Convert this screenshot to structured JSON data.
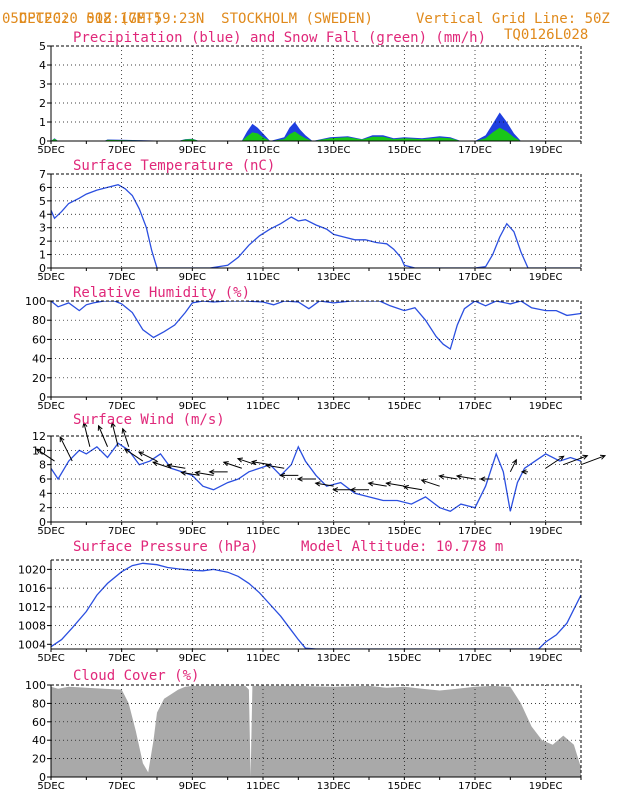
{
  "header": {
    "source": "CPTEC:",
    "coords": "018:17E-59:23N",
    "location": "STOCKHOLM (SWEDEN)",
    "run": "05DEC2020 50Z (GMT)",
    "grid_note": "Vertical Grid Line: 50Z",
    "model_code": "TQ0126L028"
  },
  "colors": {
    "header": "#e08a1c",
    "panel_title": "#e0287a",
    "line": "#2b4fe0",
    "precip": "#1f3fe0",
    "snow": "#19c619",
    "cloud": "#a9a9a9"
  },
  "chart_data": [
    {
      "type": "area",
      "title": "Precipitation (blue) and Snow Fall (green) (mm/h)",
      "x_ticks": [
        "5DEC",
        "7DEC",
        "9DEC",
        "11DEC",
        "13DEC",
        "15DEC",
        "17DEC",
        "19DEC"
      ],
      "x_days": [
        5,
        7,
        9,
        11,
        13,
        15,
        17,
        19
      ],
      "xlim": [
        5,
        20
      ],
      "ylim": [
        0,
        5
      ],
      "y_ticks": [
        0,
        1,
        2,
        3,
        4,
        5
      ],
      "grid": true,
      "series": [
        {
          "name": "Precipitation",
          "x": [
            5,
            5.1,
            5.2,
            6.5,
            6.6,
            8.6,
            8.8,
            9.0,
            9.2,
            10.4,
            10.55,
            10.7,
            10.85,
            11.0,
            11.2,
            11.6,
            11.75,
            11.9,
            12.05,
            12.2,
            12.4,
            12.9,
            13.4,
            13.8,
            14.1,
            14.4,
            14.7,
            15.0,
            15.5,
            16.0,
            16.3,
            16.6,
            17.0,
            17.3,
            17.5,
            17.7,
            17.9,
            18.1,
            18.3,
            20
          ],
          "y": [
            0,
            0.15,
            0,
            0,
            0.08,
            0,
            0.1,
            0.12,
            0,
            0,
            0.5,
            0.9,
            0.7,
            0.4,
            0,
            0.2,
            0.7,
            1.0,
            0.6,
            0.3,
            0,
            0.2,
            0.25,
            0.1,
            0.3,
            0.3,
            0.15,
            0.2,
            0.15,
            0.25,
            0.2,
            0,
            0,
            0.3,
            0.9,
            1.5,
            1.0,
            0.4,
            0,
            0
          ]
        },
        {
          "name": "Snow Fall",
          "x": [
            5,
            5.1,
            5.2,
            6.5,
            6.6,
            8.6,
            8.8,
            9.0,
            9.2,
            10.4,
            10.55,
            10.7,
            10.85,
            11.0,
            11.2,
            11.6,
            11.75,
            11.9,
            12.05,
            12.2,
            12.4,
            12.9,
            13.4,
            13.8,
            14.1,
            14.4,
            14.7,
            15.0,
            15.5,
            16.0,
            16.3,
            16.6,
            17.0,
            17.3,
            17.5,
            17.7,
            17.9,
            18.1,
            18.3,
            20
          ],
          "y": [
            0,
            0.12,
            0,
            0,
            0.06,
            0,
            0.08,
            0.1,
            0,
            0,
            0.25,
            0.45,
            0.4,
            0.2,
            0,
            0.1,
            0.35,
            0.5,
            0.3,
            0.15,
            0,
            0.15,
            0.2,
            0.08,
            0.22,
            0.22,
            0.1,
            0.15,
            0.1,
            0.18,
            0.15,
            0,
            0,
            0.15,
            0.45,
            0.7,
            0.5,
            0.2,
            0,
            0
          ]
        }
      ]
    },
    {
      "type": "line",
      "title": "Surface Temperature (nC)",
      "x_ticks": [
        "5DEC",
        "7DEC",
        "9DEC",
        "11DEC",
        "13DEC",
        "15DEC",
        "17DEC",
        "19DEC"
      ],
      "x_days": [
        5,
        7,
        9,
        11,
        13,
        15,
        17,
        19
      ],
      "xlim": [
        5,
        20
      ],
      "ylim": [
        0,
        7
      ],
      "y_ticks": [
        0,
        1,
        2,
        3,
        4,
        5,
        6,
        7
      ],
      "grid": true,
      "series": [
        {
          "name": "Surface Temperature",
          "x": [
            5,
            5.1,
            5.3,
            5.5,
            5.8,
            6.0,
            6.3,
            6.6,
            6.9,
            7.1,
            7.3,
            7.5,
            7.7,
            7.85,
            8.0,
            8.5,
            9.0,
            9.5,
            10.0,
            10.3,
            10.6,
            10.9,
            11.2,
            11.5,
            11.8,
            12.0,
            12.2,
            12.5,
            12.8,
            13.0,
            13.3,
            13.6,
            13.9,
            14.2,
            14.5,
            14.7,
            14.9,
            15.0,
            15.3,
            16.0,
            16.5,
            17.0,
            17.3,
            17.5,
            17.7,
            17.9,
            18.1,
            18.3,
            18.5,
            19.0,
            20
          ],
          "y": [
            4.3,
            3.7,
            4.2,
            4.8,
            5.2,
            5.5,
            5.8,
            6.0,
            6.2,
            5.9,
            5.4,
            4.4,
            3.0,
            1.3,
            0,
            0,
            0,
            0,
            0.2,
            0.8,
            1.7,
            2.4,
            2.9,
            3.3,
            3.8,
            3.5,
            3.6,
            3.2,
            2.9,
            2.5,
            2.3,
            2.1,
            2.1,
            1.9,
            1.8,
            1.4,
            0.8,
            0.2,
            0,
            0,
            0,
            0,
            0.1,
            1.0,
            2.3,
            3.3,
            2.7,
            1.2,
            0,
            0,
            0
          ]
        }
      ]
    },
    {
      "type": "line",
      "title": "Relative Humidity (%)",
      "x_ticks": [
        "5DEC",
        "7DEC",
        "9DEC",
        "11DEC",
        "13DEC",
        "15DEC",
        "17DEC",
        "19DEC"
      ],
      "x_days": [
        5,
        7,
        9,
        11,
        13,
        15,
        17,
        19
      ],
      "xlim": [
        5,
        20
      ],
      "ylim": [
        0,
        100
      ],
      "y_ticks": [
        0,
        20,
        40,
        60,
        80,
        100
      ],
      "grid": true,
      "series": [
        {
          "name": "Relative Humidity",
          "x": [
            5,
            5.2,
            5.5,
            5.8,
            6.0,
            6.2,
            6.5,
            6.8,
            7.0,
            7.3,
            7.6,
            7.9,
            8.2,
            8.5,
            8.8,
            9.0,
            9.3,
            9.6,
            10.0,
            10.5,
            11.0,
            11.3,
            11.6,
            12.0,
            12.3,
            12.6,
            13.0,
            13.5,
            14.0,
            14.3,
            14.6,
            15.0,
            15.3,
            15.6,
            15.9,
            16.1,
            16.3,
            16.5,
            16.7,
            17.0,
            17.3,
            17.6,
            18.0,
            18.3,
            18.6,
            19.0,
            19.3,
            19.6,
            20
          ],
          "y": [
            100,
            94,
            98,
            90,
            96,
            98,
            100,
            100,
            97,
            88,
            70,
            62,
            68,
            75,
            88,
            98,
            100,
            99,
            100,
            100,
            99,
            96,
            100,
            99,
            92,
            100,
            98,
            100,
            100,
            100,
            95,
            90,
            93,
            80,
            63,
            55,
            50,
            75,
            92,
            100,
            95,
            100,
            97,
            100,
            93,
            90,
            90,
            85,
            87
          ]
        }
      ]
    },
    {
      "type": "line",
      "title": "Surface Wind (m/s)",
      "x_ticks": [
        "5DEC",
        "7DEC",
        "9DEC",
        "11DEC",
        "13DEC",
        "15DEC",
        "17DEC",
        "19DEC"
      ],
      "x_days": [
        5,
        7,
        9,
        11,
        13,
        15,
        17,
        19
      ],
      "xlim": [
        5,
        20
      ],
      "ylim": [
        0,
        12
      ],
      "y_ticks": [
        0,
        2,
        4,
        6,
        8,
        10,
        12
      ],
      "grid": true,
      "series": [
        {
          "name": "Wind speed",
          "x": [
            5,
            5.2,
            5.5,
            5.8,
            6.0,
            6.3,
            6.6,
            6.9,
            7.2,
            7.5,
            7.8,
            8.1,
            8.4,
            8.7,
            9.0,
            9.3,
            9.6,
            10.0,
            10.3,
            10.6,
            10.9,
            11.2,
            11.5,
            11.8,
            12.0,
            12.2,
            12.5,
            12.8,
            13.2,
            13.6,
            14.0,
            14.4,
            14.8,
            15.2,
            15.6,
            16.0,
            16.3,
            16.6,
            17.0,
            17.3,
            17.6,
            17.8,
            18.0,
            18.2,
            18.4,
            18.7,
            19.0,
            19.4,
            19.7,
            20
          ],
          "y": [
            7.5,
            6.0,
            8.5,
            10.0,
            9.5,
            10.5,
            9.0,
            11.0,
            10.0,
            8.0,
            8.5,
            9.5,
            7.5,
            7.0,
            6.5,
            5.0,
            4.5,
            5.5,
            6.0,
            7.0,
            7.5,
            8.0,
            6.5,
            8.0,
            10.5,
            8.5,
            6.5,
            5.0,
            5.5,
            4.0,
            3.5,
            3.0,
            3.0,
            2.5,
            3.5,
            2.0,
            1.5,
            2.5,
            2.0,
            5.0,
            9.5,
            7.0,
            1.5,
            5.5,
            7.5,
            8.5,
            9.5,
            8.5,
            9.0,
            8.5
          ]
        }
      ],
      "wind_arrows": {
        "x": [
          5.1,
          5.6,
          6.1,
          6.6,
          6.9,
          7.2,
          7.6,
          8.0,
          8.4,
          8.8,
          9.2,
          9.6,
          10.0,
          10.4,
          10.8,
          11.2,
          11.6,
          12.0,
          12.5,
          13.0,
          13.5,
          14.0,
          14.5,
          15.0,
          15.5,
          16.0,
          16.5,
          17.0,
          17.5,
          18.0,
          18.5,
          19.0,
          19.5,
          20.0
        ],
        "y": [
          8.5,
          8.5,
          10.5,
          10.5,
          10.5,
          10.5,
          8.5,
          8.5,
          7.5,
          7.5,
          6.5,
          6.5,
          7.0,
          7.5,
          8.0,
          8.0,
          7.5,
          6.5,
          6.0,
          5.0,
          4.5,
          4.5,
          5.0,
          5.0,
          4.5,
          5.0,
          6.0,
          6.0,
          6.0,
          7.0,
          7.0,
          7.5,
          8.0,
          8.0
        ],
        "u": [
          -3,
          -2,
          -1,
          -1.5,
          -1,
          -1,
          -3,
          -3,
          -3,
          -3,
          -3,
          -3,
          -3,
          -3,
          -3,
          -3,
          -3,
          -3,
          -3,
          -3,
          -3,
          -3,
          -3,
          -3,
          -3,
          -3,
          -3,
          -3,
          -2,
          1,
          -1,
          3,
          4,
          4
        ],
        "v": [
          2,
          4,
          4,
          3.5,
          4,
          3,
          2,
          1.5,
          1,
          0.5,
          0.5,
          0.5,
          0,
          1,
          1,
          0.5,
          0.5,
          0,
          0,
          0.5,
          0,
          0,
          0.5,
          0.5,
          0.5,
          1,
          0.5,
          0.5,
          0,
          2,
          0,
          2,
          1.5,
          1.5
        ]
      }
    },
    {
      "type": "line",
      "title": "Surface Pressure (hPa)",
      "annotation": "Model Altitude: 10.778 m",
      "x_ticks": [
        "5DEC",
        "7DEC",
        "9DEC",
        "11DEC",
        "13DEC",
        "15DEC",
        "17DEC",
        "19DEC"
      ],
      "x_days": [
        5,
        7,
        9,
        11,
        13,
        15,
        17,
        19
      ],
      "xlim": [
        5,
        20
      ],
      "ylim": [
        1003,
        1022
      ],
      "y_ticks": [
        1004,
        1008,
        1012,
        1016,
        1020
      ],
      "y_tick_labels": [
        "1004",
        "1008",
        "1012",
        "1016",
        "1020"
      ],
      "grid": true,
      "series": [
        {
          "name": "Surface Pressure",
          "x": [
            5,
            5.3,
            5.6,
            6.0,
            6.3,
            6.6,
            7.0,
            7.3,
            7.6,
            8.0,
            8.3,
            8.6,
            9.0,
            9.3,
            9.6,
            10.0,
            10.3,
            10.6,
            10.9,
            11.2,
            11.5,
            11.8,
            12.0,
            12.2,
            12.5,
            18.8,
            19.0,
            19.3,
            19.6,
            19.8,
            20
          ],
          "y": [
            1003.5,
            1005.0,
            1007.5,
            1011.0,
            1014.5,
            1017.0,
            1019.5,
            1020.8,
            1021.3,
            1021.0,
            1020.4,
            1020.1,
            1019.8,
            1019.7,
            1020.0,
            1019.4,
            1018.5,
            1017.0,
            1015.0,
            1012.5,
            1010.0,
            1007.0,
            1005.0,
            1003.2,
            1003.0,
            1003.0,
            1004.5,
            1006.0,
            1008.5,
            1011.5,
            1014.5
          ]
        }
      ]
    },
    {
      "type": "area",
      "title": "Cloud Cover (%)",
      "x_ticks": [
        "5DEC",
        "7DEC",
        "9DEC",
        "11DEC",
        "13DEC",
        "15DEC",
        "17DEC",
        "19DEC"
      ],
      "x_days": [
        5,
        7,
        9,
        11,
        13,
        15,
        17,
        19
      ],
      "xlim": [
        5,
        20
      ],
      "ylim": [
        0,
        100
      ],
      "y_ticks": [
        0,
        20,
        40,
        60,
        80,
        100
      ],
      "grid": true,
      "series": [
        {
          "name": "Cloud Cover",
          "x": [
            5,
            5.2,
            5.5,
            6.0,
            6.5,
            7.0,
            7.2,
            7.4,
            7.6,
            7.75,
            7.9,
            8.0,
            8.2,
            8.4,
            8.6,
            8.8,
            9.0,
            9.5,
            10.0,
            10.5,
            10.6,
            10.65,
            10.7,
            11.0,
            12.0,
            13.0,
            14.0,
            14.5,
            15.0,
            15.5,
            16.0,
            16.5,
            17.0,
            17.5,
            18.0,
            18.3,
            18.6,
            18.9,
            19.2,
            19.5,
            19.8,
            20
          ],
          "y": [
            98,
            96,
            98,
            97,
            96,
            95,
            80,
            50,
            15,
            5,
            40,
            70,
            85,
            90,
            95,
            98,
            99,
            99,
            99,
            99,
            95,
            0,
            99,
            99,
            99,
            98,
            99,
            97,
            98,
            96,
            94,
            96,
            98,
            99,
            98,
            80,
            55,
            40,
            35,
            45,
            35,
            10
          ]
        }
      ]
    }
  ]
}
